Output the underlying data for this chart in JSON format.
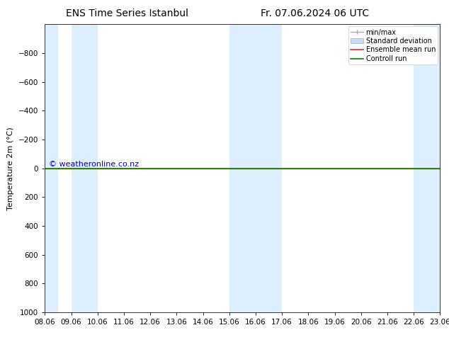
{
  "title": "ENS Time Series Istanbul",
  "title2": "Fr. 07.06.2024 06 UTC",
  "ylabel": "Temperature 2m (°C)",
  "xlim_start": 8.06,
  "xlim_end": 23.06,
  "ylim_bottom": 1000,
  "ylim_top": -1000,
  "yticks": [
    -800,
    -600,
    -400,
    -200,
    0,
    200,
    400,
    600,
    800,
    1000
  ],
  "xtick_labels": [
    "08.06",
    "09.06",
    "10.06",
    "11.06",
    "12.06",
    "13.06",
    "14.06",
    "15.06",
    "16.06",
    "17.06",
    "18.06",
    "19.06",
    "20.06",
    "21.06",
    "22.06",
    "23.06"
  ],
  "xtick_positions": [
    8.06,
    9.06,
    10.06,
    11.06,
    12.06,
    13.06,
    14.06,
    15.06,
    16.06,
    17.06,
    18.06,
    19.06,
    20.06,
    21.06,
    22.06,
    23.06
  ],
  "shaded_regions": [
    [
      8.06,
      8.56
    ],
    [
      9.06,
      10.06
    ],
    [
      15.06,
      17.06
    ],
    [
      22.06,
      23.06
    ]
  ],
  "shaded_color": "#ddeeff",
  "control_run_y": 0.0,
  "ensemble_mean_y": 0.0,
  "control_run_color": "#008800",
  "ensemble_mean_color": "#ff2222",
  "bg_color": "#ffffff",
  "ax_bg_color": "#ffffff",
  "watermark": "© weatheronline.co.nz",
  "watermark_color": "#0000cc",
  "watermark_fontsize": 8,
  "legend_fontsize": 7,
  "title_fontsize": 10,
  "axis_fontsize": 7.5,
  "ylabel_fontsize": 8,
  "minmax_line_color": "#aaaaaa",
  "std_fill_color": "#c8dff0",
  "std_edge_color": "#aaaaaa"
}
